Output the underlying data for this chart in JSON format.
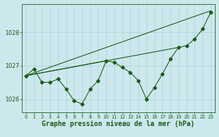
{
  "background_color": "#cce8ec",
  "grid_color": "#aad0d8",
  "line_color": "#1a5c1a",
  "xlabel": "Graphe pression niveau de la mer (hPa)",
  "xlabel_fontsize": 7,
  "xlim": [
    -0.5,
    23.5
  ],
  "ylim": [
    1025.6,
    1028.85
  ],
  "yticks": [
    1026,
    1027,
    1028
  ],
  "xticks": [
    0,
    1,
    2,
    3,
    4,
    5,
    6,
    7,
    8,
    9,
    10,
    11,
    12,
    13,
    14,
    15,
    16,
    17,
    18,
    19,
    20,
    21,
    22,
    23
  ],
  "series_main": [
    1026.7,
    1026.9,
    1026.5,
    1026.5,
    1026.6,
    1026.3,
    1025.95,
    1025.85,
    1026.3,
    1026.55,
    1027.15,
    1027.1,
    1026.95,
    1026.8,
    1026.55,
    1026.0,
    1026.35,
    1026.75,
    1027.2,
    1027.55,
    1027.6,
    1027.8,
    1028.1,
    1028.6
  ],
  "line1_x": [
    0,
    23
  ],
  "line1_y": [
    1026.7,
    1028.65
  ],
  "line2_x": [
    0,
    19
  ],
  "line2_y": [
    1026.7,
    1027.55
  ],
  "line3_x": [
    0,
    10
  ],
  "line3_y": [
    1026.7,
    1027.15
  ],
  "marker_size": 2.5,
  "tick_fontsize": 5,
  "line_width": 0.8
}
